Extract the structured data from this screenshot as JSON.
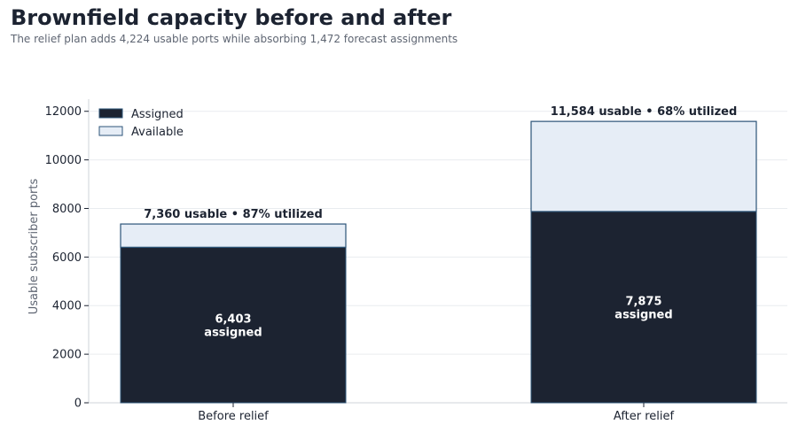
{
  "title": "Brownfield capacity before and after",
  "subtitle": "The relief plan adds 4,224 usable ports while absorbing 1,472 forecast assignments",
  "chart_data": {
    "type": "bar",
    "stacked": true,
    "categories": [
      "Before relief",
      "After relief"
    ],
    "series": [
      {
        "name": "Assigned",
        "values": [
          6403,
          7875
        ],
        "color": "#1c2331",
        "labels": [
          "6,403\nassigned",
          "7,875\nassigned"
        ]
      },
      {
        "name": "Available",
        "values": [
          957,
          3709
        ],
        "color": "#e6edf6",
        "edge": "#2c5478"
      }
    ],
    "totals": [
      7360,
      11584
    ],
    "total_labels": [
      "7,360 usable • 87% utilized",
      "11,584 usable • 68% utilized"
    ],
    "ylabel": "Usable subscriber ports",
    "xlabel": "",
    "ylim": [
      0,
      12500
    ],
    "yticks": [
      0,
      2000,
      4000,
      6000,
      8000,
      10000,
      12000
    ],
    "grid": true,
    "legend_position": "top-left"
  }
}
